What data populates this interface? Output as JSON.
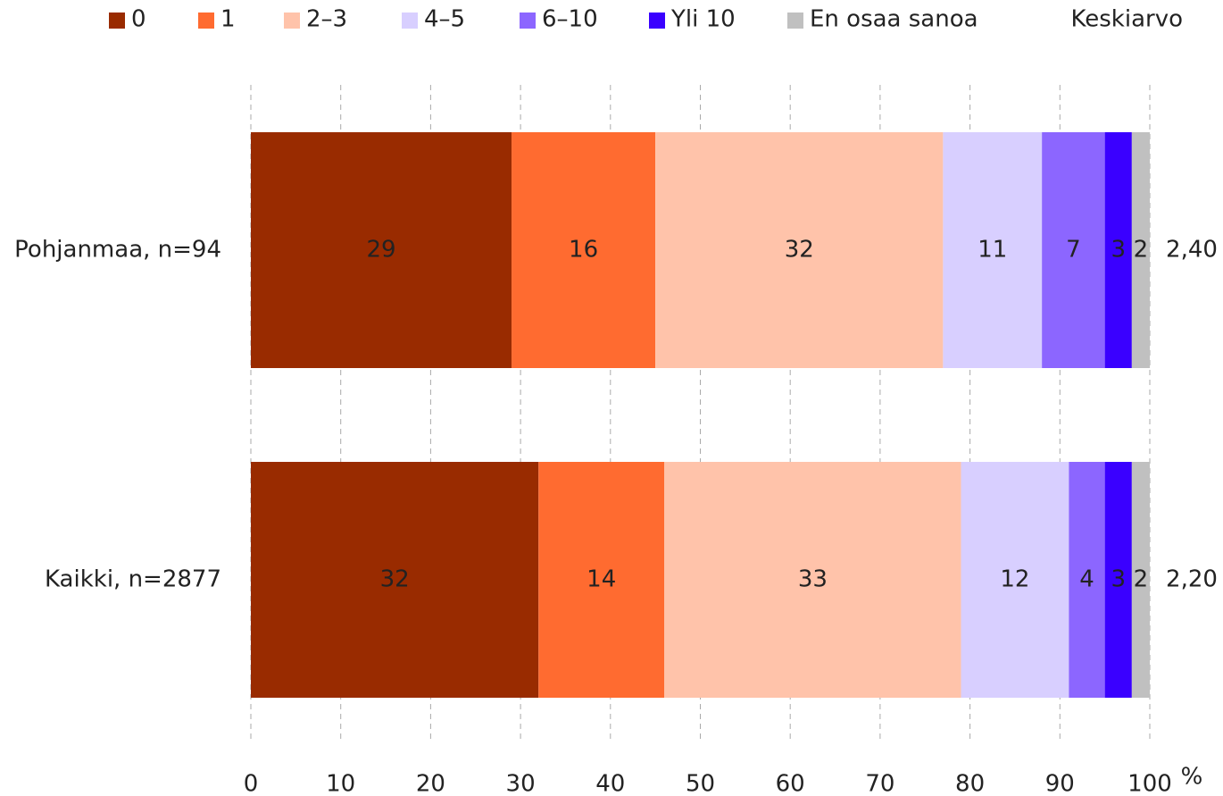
{
  "chart_data": {
    "type": "stacked_barh",
    "categories": [
      "Pohjanmaa, n=94",
      "Kaikki, n=2877"
    ],
    "series": [
      {
        "name": "0",
        "color": "#992b00",
        "values": [
          29,
          32
        ]
      },
      {
        "name": "1",
        "color": "#ff6b30",
        "values": [
          16,
          14
        ]
      },
      {
        "name": "2–3",
        "color": "#ffc3aa",
        "values": [
          32,
          33
        ]
      },
      {
        "name": "4–5",
        "color": "#d8cfff",
        "values": [
          11,
          12
        ]
      },
      {
        "name": "6–10",
        "color": "#8c66ff",
        "values": [
          7,
          4
        ]
      },
      {
        "name": "Yli 10",
        "color": "#3a00ff",
        "values": [
          3,
          3
        ]
      },
      {
        "name": "En osaa sanoa",
        "color": "#c0c0c0",
        "values": [
          2,
          2
        ]
      }
    ],
    "mean": {
      "title": "Keskiarvo",
      "values": [
        "2,40",
        "2,20"
      ]
    },
    "x_label": "%",
    "xlim": [
      0,
      100
    ],
    "xticks": [
      0,
      10,
      20,
      30,
      40,
      50,
      60,
      70,
      80,
      90,
      100
    ],
    "grid": true,
    "legend": "top"
  }
}
